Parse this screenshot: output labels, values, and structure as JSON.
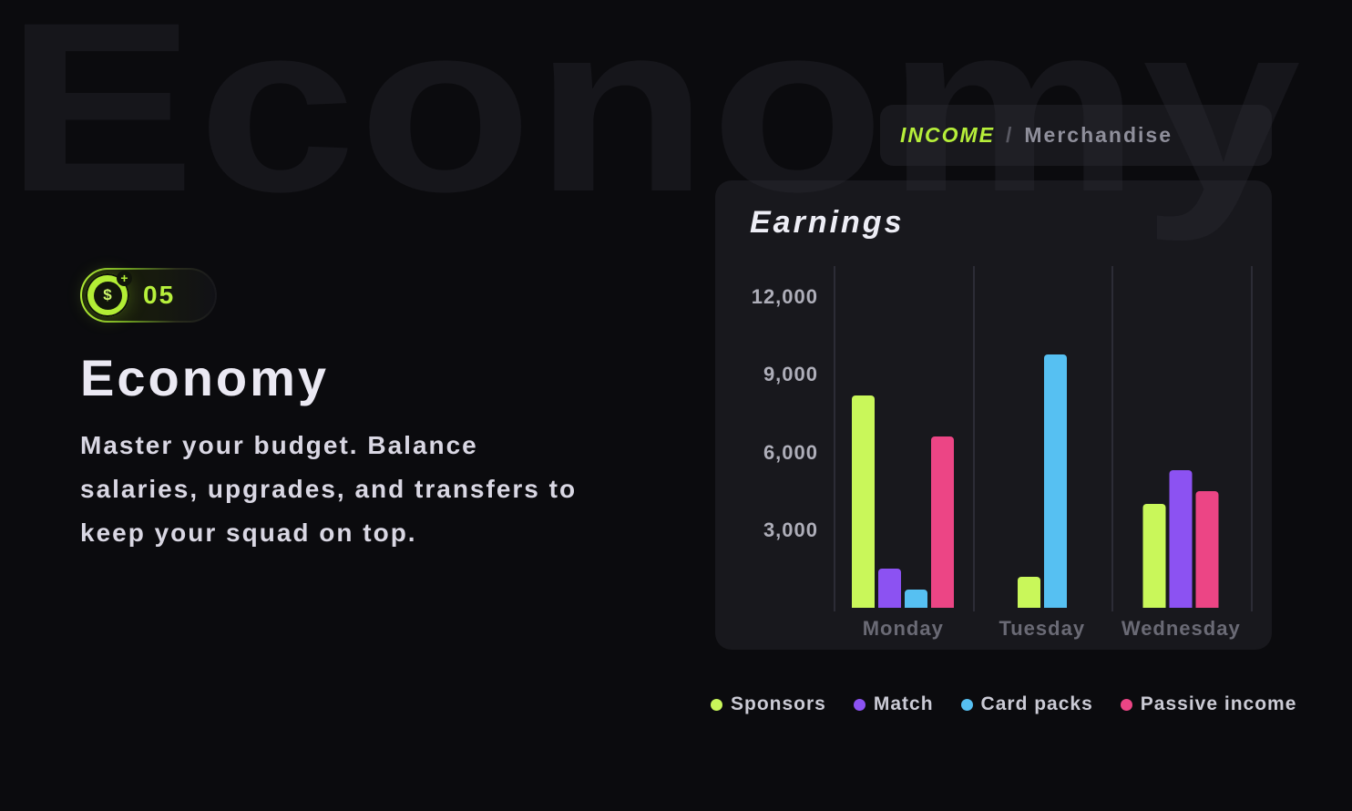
{
  "background": {
    "watermark_text": "Economy"
  },
  "tab_bar": {
    "active_tab": "INCOME",
    "separator": "/",
    "inactive_tab": "Merchandise"
  },
  "badge": {
    "number": "05",
    "coin_symbol": "$",
    "coin_plus": "+"
  },
  "hero": {
    "title": "Economy",
    "description_lines": [
      "Master your budget. Balance",
      "salaries, upgrades, and transfers to",
      "keep your squad on top."
    ]
  },
  "chart_card": {
    "title": "Earnings"
  },
  "chart_data": {
    "type": "bar",
    "title": "Earnings",
    "categories": [
      "Monday",
      "Tuesday",
      "Wednesday"
    ],
    "series": [
      {
        "name": "Sponsors",
        "color": "#c9f75a",
        "values": [
          8200,
          1200,
          4000
        ]
      },
      {
        "name": "Match",
        "color": "#8c52f2",
        "values": [
          1500,
          null,
          5300
        ]
      },
      {
        "name": "Card packs",
        "color": "#56c0f2",
        "values": [
          700,
          9800,
          null
        ]
      },
      {
        "name": "Passive income",
        "color": "#ec4585",
        "values": [
          6600,
          null,
          4500
        ]
      }
    ],
    "xlabel": "",
    "ylabel": "",
    "yticks": [
      3000,
      6000,
      9000,
      12000
    ],
    "ytick_labels": [
      "3,000",
      "6,000",
      "9,000",
      "12,000"
    ],
    "ylim": [
      0,
      13200
    ],
    "grid": "vertical-only",
    "legend_position": "bottom-left"
  },
  "colors": {
    "page_bg": "#0b0b0e",
    "accent_green": "#b6ee3a",
    "series_green": "#c9f75a",
    "series_purple": "#8c52f2",
    "series_blue": "#56c0f2",
    "series_pink": "#ec4585"
  }
}
